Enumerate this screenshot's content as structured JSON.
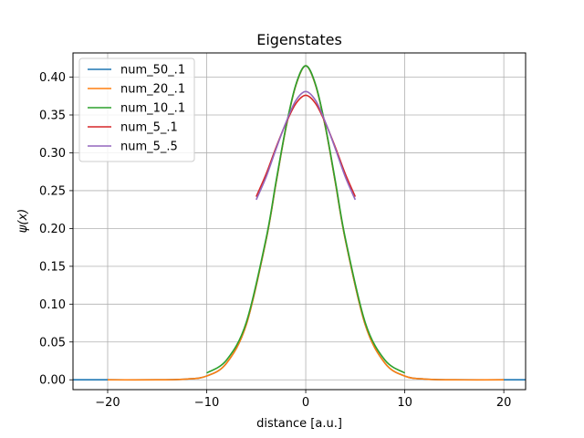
{
  "chart_data": {
    "type": "line",
    "title": "Eigenstates",
    "xlabel": "distance [a.u.]",
    "ylabel": "ψ(x)",
    "xlim": [
      -23.5,
      22.2
    ],
    "ylim": [
      -0.013,
      0.432
    ],
    "xticks": [
      -20,
      -10,
      0,
      10,
      20
    ],
    "xtick_labels": [
      "−20",
      "−10",
      "0",
      "10",
      "20"
    ],
    "yticks": [
      0.0,
      0.05,
      0.1,
      0.15,
      0.2,
      0.25,
      0.3,
      0.35,
      0.4
    ],
    "ytick_labels": [
      "0.00",
      "0.05",
      "0.10",
      "0.15",
      "0.20",
      "0.25",
      "0.30",
      "0.35",
      "0.40"
    ],
    "grid": true,
    "legend_position": "top-left",
    "series": [
      {
        "name": "num_50_.1",
        "color": "#1f77b4",
        "x": [
          -25,
          -20,
          -15,
          -12,
          -10,
          -8,
          -6,
          -4,
          -3,
          -2,
          -1,
          0,
          1,
          2,
          3,
          4,
          6,
          8,
          10,
          12,
          15,
          20,
          25
        ],
        "y": [
          0.0,
          0.0,
          0.0,
          0.001,
          0.005,
          0.022,
          0.073,
          0.185,
          0.26,
          0.333,
          0.389,
          0.415,
          0.389,
          0.333,
          0.26,
          0.185,
          0.073,
          0.022,
          0.005,
          0.001,
          0.0,
          0.0,
          0.0
        ]
      },
      {
        "name": "num_20_.1",
        "color": "#ff7f0e",
        "x": [
          -20,
          -15,
          -12,
          -10,
          -8,
          -6,
          -4,
          -3,
          -2,
          -1,
          0,
          1,
          2,
          3,
          4,
          6,
          8,
          10,
          12,
          15,
          20
        ],
        "y": [
          0.0,
          0.0,
          0.001,
          0.005,
          0.022,
          0.073,
          0.185,
          0.26,
          0.333,
          0.389,
          0.415,
          0.389,
          0.333,
          0.26,
          0.185,
          0.073,
          0.022,
          0.005,
          0.001,
          0.0,
          0.0
        ]
      },
      {
        "name": "num_10_.1",
        "color": "#2ca02c",
        "x": [
          -10,
          -8,
          -6,
          -4,
          -3,
          -2,
          -1,
          0,
          1,
          2,
          3,
          4,
          6,
          8,
          10
        ],
        "y": [
          0.009,
          0.026,
          0.076,
          0.187,
          0.262,
          0.334,
          0.39,
          0.415,
          0.39,
          0.334,
          0.262,
          0.187,
          0.076,
          0.026,
          0.009
        ]
      },
      {
        "name": "num_5_.1",
        "color": "#d62728",
        "x": [
          -5,
          -4,
          -3,
          -2,
          -1,
          0,
          1,
          2,
          3,
          4,
          5
        ],
        "y": [
          0.242,
          0.272,
          0.307,
          0.339,
          0.365,
          0.376,
          0.365,
          0.339,
          0.307,
          0.272,
          0.242
        ]
      },
      {
        "name": "num_5_.5",
        "color": "#9467bd",
        "x": [
          -5,
          -4,
          -3,
          -2,
          -1,
          0,
          1,
          2,
          3,
          4,
          5
        ],
        "y": [
          0.238,
          0.268,
          0.305,
          0.34,
          0.369,
          0.381,
          0.369,
          0.34,
          0.305,
          0.268,
          0.238
        ]
      }
    ]
  }
}
